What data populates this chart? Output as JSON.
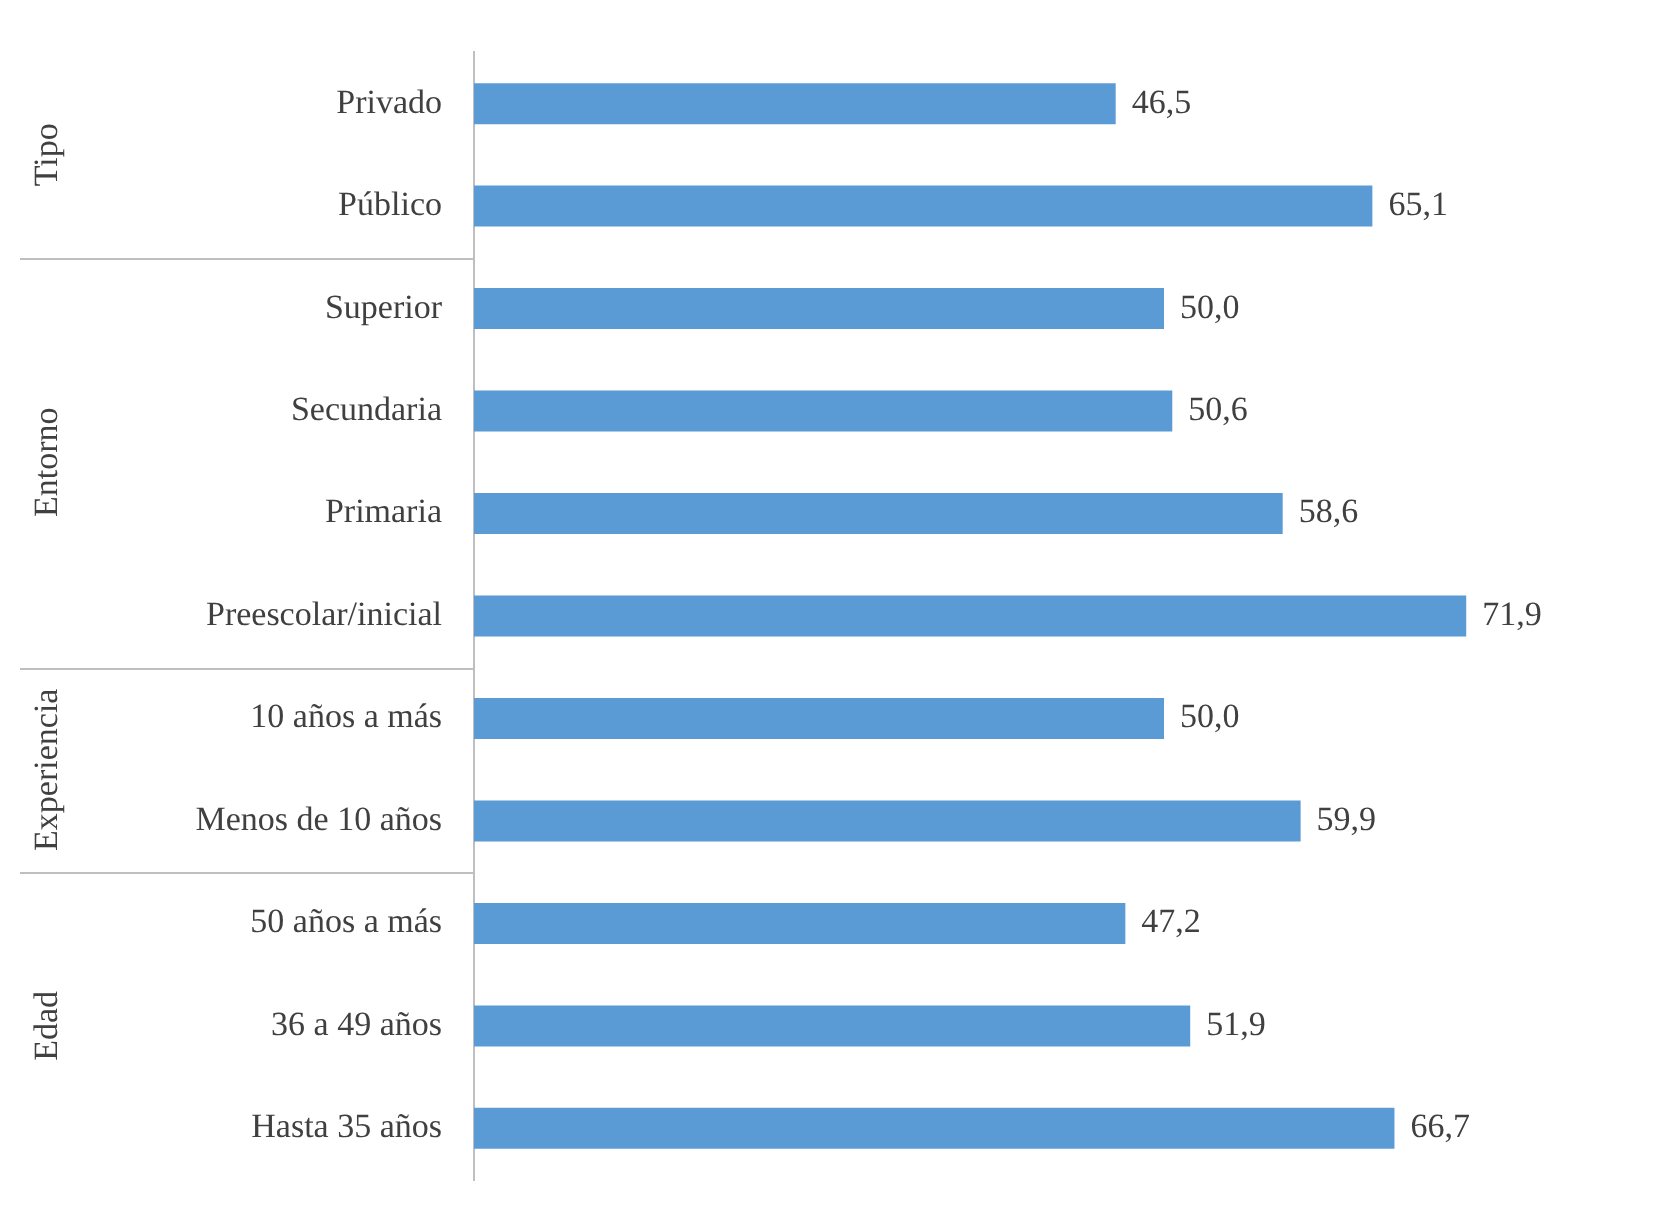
{
  "chart_data": {
    "type": "bar",
    "orientation": "horizontal",
    "categories": [
      "Privado",
      "Público",
      "Superior",
      "Secundaria",
      "Primaria",
      "Preescolar/inicial",
      "10 años a más",
      "Menos de 10 años",
      "50 años a más",
      "36 a 49 años",
      "Hasta 35 años"
    ],
    "values": [
      46.5,
      65.1,
      50.0,
      50.6,
      58.6,
      71.9,
      50.0,
      59.9,
      47.2,
      51.9,
      66.7
    ],
    "value_labels": [
      "46,5",
      "65,1",
      "50,0",
      "50,6",
      "58,6",
      "71,9",
      "50,0",
      "59,9",
      "47,2",
      "51,9",
      "66,7"
    ],
    "color": "#5b9bd5",
    "tick_labels": "y",
    "annotations": [
      "Tipo",
      "Entorno",
      "Experiencia",
      "Edad"
    ]
  }
}
